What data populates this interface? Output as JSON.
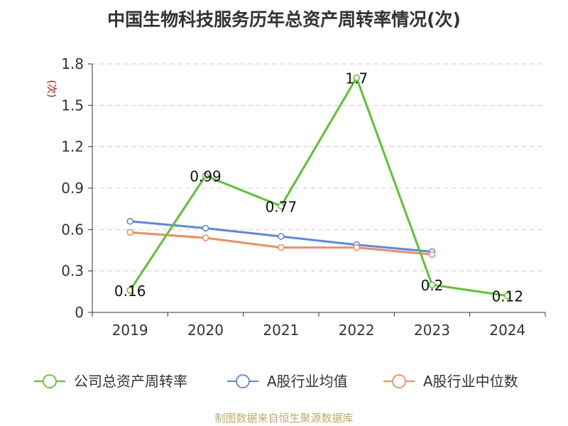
{
  "title": "中国生物科技服务历年总资产周转率情况(次)",
  "source_note": "制图数据来自恒生聚源数据库",
  "chart_data": {
    "type": "line",
    "title": "中国生物科技服务历年总资产周转率情况(次)",
    "ylabel": "(次)",
    "xlabel": "",
    "categories": [
      "2019",
      "2020",
      "2021",
      "2022",
      "2023",
      "2024"
    ],
    "y_ticks": [
      "0",
      "0.3",
      "0.6",
      "0.9",
      "1.2",
      "1.5",
      "1.8"
    ],
    "ylim": [
      0,
      1.8
    ],
    "grid": true,
    "legend_position": "bottom",
    "series": [
      {
        "name": "公司总资产周转率",
        "color": "#5dc431",
        "values": [
          0.16,
          0.99,
          0.77,
          1.7,
          0.2,
          0.12
        ],
        "labels": [
          "0.16",
          "0.99",
          "0.77",
          "1.7",
          "0.2",
          "0.12"
        ]
      },
      {
        "name": "A股行业均值",
        "color": "#5b86e5",
        "values": [
          0.66,
          0.61,
          0.55,
          0.49,
          0.44,
          null
        ]
      },
      {
        "name": "A股行业中位数",
        "color": "#f78b5b",
        "values": [
          0.58,
          0.54,
          0.47,
          0.47,
          0.42,
          null
        ]
      }
    ]
  }
}
